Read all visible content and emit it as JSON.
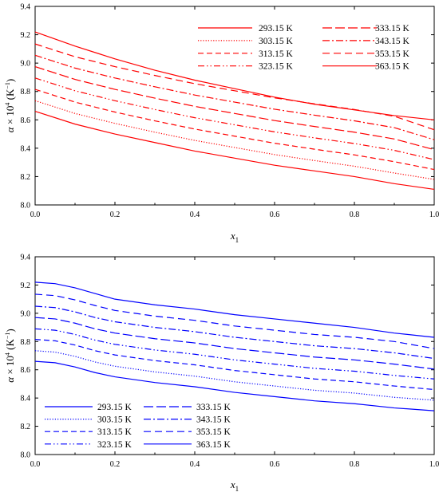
{
  "chart_data": [
    {
      "type": "line",
      "color": "#ff0000",
      "xlabel": "x1",
      "ylabel": "α × 10^4 (K^−1)",
      "xlim": [
        0.0,
        1.0
      ],
      "ylim": [
        8.0,
        9.4
      ],
      "x_ticks": [
        "0.0",
        "0.2",
        "0.4",
        "0.6",
        "0.8",
        "1.0"
      ],
      "y_ticks": [
        "8.0",
        "8.2",
        "8.4",
        "8.6",
        "8.8",
        "9.0",
        "9.2",
        "9.4"
      ],
      "legend_position": "top-right",
      "x": [
        0.0,
        0.1,
        0.2,
        0.3,
        0.4,
        0.5,
        0.6,
        0.7,
        0.8,
        0.9,
        1.0
      ],
      "series": [
        {
          "name": "293.15 K",
          "dash": "solid",
          "values": [
            8.66,
            8.57,
            8.5,
            8.44,
            8.38,
            8.33,
            8.28,
            8.24,
            8.2,
            8.15,
            8.11
          ]
        },
        {
          "name": "303.15 K",
          "dash": "dotted",
          "values": [
            8.735,
            8.645,
            8.575,
            8.513,
            8.455,
            8.405,
            8.355,
            8.313,
            8.273,
            8.225,
            8.18
          ]
        },
        {
          "name": "313.15 K",
          "dash": "dashed",
          "values": [
            8.815,
            8.725,
            8.655,
            8.593,
            8.535,
            8.485,
            8.435,
            8.393,
            8.353,
            8.305,
            8.25
          ]
        },
        {
          "name": "323.15 K",
          "dash": "dashdotdot",
          "values": [
            8.895,
            8.805,
            8.735,
            8.673,
            8.615,
            8.565,
            8.515,
            8.473,
            8.433,
            8.385,
            8.32
          ]
        },
        {
          "name": "333.15 K",
          "dash": "longdash",
          "values": [
            8.975,
            8.885,
            8.815,
            8.753,
            8.695,
            8.645,
            8.595,
            8.553,
            8.513,
            8.465,
            8.39
          ]
        },
        {
          "name": "343.15 K",
          "dash": "dashdot",
          "values": [
            9.055,
            8.965,
            8.895,
            8.833,
            8.775,
            8.725,
            8.675,
            8.633,
            8.593,
            8.545,
            8.46
          ]
        },
        {
          "name": "353.15 K",
          "dash": "mediumdash",
          "values": [
            9.135,
            9.045,
            8.975,
            8.913,
            8.855,
            8.805,
            8.755,
            8.713,
            8.673,
            8.625,
            8.53
          ]
        },
        {
          "name": "363.15 K",
          "dash": "solid",
          "values": [
            9.22,
            9.12,
            9.03,
            8.95,
            8.88,
            8.82,
            8.76,
            8.71,
            8.67,
            8.63,
            8.6
          ]
        }
      ]
    },
    {
      "type": "line",
      "color": "#0000ff",
      "xlabel": "x1",
      "ylabel": "α × 10^4 (K^−1)",
      "xlim": [
        0.0,
        1.0
      ],
      "ylim": [
        8.0,
        9.4
      ],
      "x_ticks": [
        "0.0",
        "0.2",
        "0.4",
        "0.6",
        "0.8",
        "1.0"
      ],
      "y_ticks": [
        "8.0",
        "8.2",
        "8.4",
        "8.6",
        "8.8",
        "9.0",
        "9.2",
        "9.4"
      ],
      "legend_position": "bottom-left",
      "x": [
        0.0,
        0.05,
        0.1,
        0.15,
        0.2,
        0.3,
        0.4,
        0.5,
        0.6,
        0.7,
        0.8,
        0.9,
        1.0
      ],
      "series": [
        {
          "name": "293.15 K",
          "dash": "solid",
          "values": [
            8.66,
            8.65,
            8.62,
            8.58,
            8.55,
            8.51,
            8.48,
            8.44,
            8.41,
            8.38,
            8.36,
            8.33,
            8.31
          ]
        },
        {
          "name": "303.15 K",
          "dash": "dotted",
          "values": [
            8.735,
            8.725,
            8.695,
            8.655,
            8.625,
            8.585,
            8.555,
            8.515,
            8.485,
            8.455,
            8.435,
            8.405,
            8.385
          ]
        },
        {
          "name": "313.15 K",
          "dash": "dashed",
          "values": [
            8.815,
            8.805,
            8.775,
            8.735,
            8.705,
            8.665,
            8.635,
            8.595,
            8.565,
            8.535,
            8.515,
            8.485,
            8.46
          ]
        },
        {
          "name": "323.15 K",
          "dash": "dashdotdot",
          "values": [
            8.89,
            8.88,
            8.85,
            8.81,
            8.78,
            8.74,
            8.71,
            8.67,
            8.64,
            8.61,
            8.59,
            8.56,
            8.535
          ]
        },
        {
          "name": "333.15 K",
          "dash": "longdash",
          "values": [
            8.97,
            8.96,
            8.93,
            8.89,
            8.86,
            8.82,
            8.79,
            8.75,
            8.72,
            8.69,
            8.67,
            8.64,
            8.605
          ]
        },
        {
          "name": "343.15 K",
          "dash": "dashdot",
          "values": [
            9.05,
            9.04,
            9.01,
            8.97,
            8.94,
            8.9,
            8.87,
            8.83,
            8.8,
            8.77,
            8.75,
            8.72,
            8.68
          ]
        },
        {
          "name": "353.15 K",
          "dash": "mediumdash",
          "values": [
            9.135,
            9.125,
            9.095,
            9.055,
            9.02,
            8.98,
            8.95,
            8.91,
            8.88,
            8.85,
            8.83,
            8.8,
            8.75
          ]
        },
        {
          "name": "363.15 K",
          "dash": "solid",
          "values": [
            9.22,
            9.21,
            9.18,
            9.14,
            9.1,
            9.06,
            9.03,
            8.99,
            8.96,
            8.93,
            8.9,
            8.86,
            8.83
          ]
        }
      ]
    }
  ]
}
